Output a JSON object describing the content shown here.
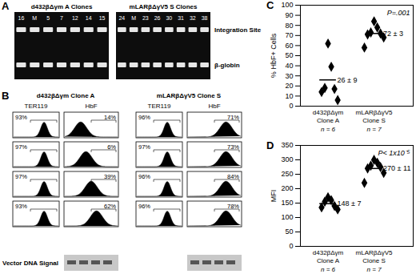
{
  "panel_a": {
    "label": "A",
    "gels": [
      {
        "title": "d432βΔγm A Clones",
        "lanes": [
          "16",
          "M",
          "5",
          "7",
          "12",
          "14",
          "15"
        ]
      },
      {
        "title": "mLARβΔγV5 S Clones",
        "lanes": [
          "24",
          "M",
          "23",
          "26",
          "30",
          "31",
          "32",
          "38"
        ]
      }
    ],
    "row_labels": [
      "Integration Site",
      "β-globin"
    ]
  },
  "panel_b": {
    "label": "B",
    "groups": [
      {
        "title": "d432βΔγm Clone A",
        "columns": [
          "TER119",
          "HbF"
        ],
        "rows": [
          [
            "93%",
            "14%"
          ],
          [
            "97%",
            "6%"
          ],
          [
            "97%",
            "39%"
          ],
          [
            "93%",
            "62%"
          ]
        ]
      },
      {
        "title": "mLARβΔγV5 Clone S",
        "columns": [
          "TER119",
          "HbF"
        ],
        "rows": [
          [
            "96%",
            "71%"
          ],
          [
            "97%",
            "73%"
          ],
          [
            "96%",
            "84%"
          ],
          [
            "96%",
            "78%"
          ]
        ]
      }
    ],
    "footer": "Vector DNA Signal"
  },
  "chart_data": [
    {
      "panel_label": "C",
      "type": "scatter",
      "marker": "diamond",
      "color": "#000000",
      "categories": [
        "d432βΔγm Clone A",
        "mLARβΔγV5 Clone S"
      ],
      "category_notes": [
        "n = 6",
        "n = 7"
      ],
      "values": [
        [
          62,
          39,
          18,
          17,
          14,
          6
        ],
        [
          84,
          78,
          73,
          72,
          71,
          68,
          58
        ]
      ],
      "means": [
        26,
        72
      ],
      "mean_labels": [
        "26 ± 9",
        "72 ± 3"
      ],
      "annotation": "P=.001",
      "ylabel": "% HbF+ Cells",
      "ylim": [
        0,
        100
      ],
      "yticks": [
        0,
        10,
        20,
        30,
        40,
        50,
        60,
        70,
        80,
        90,
        100
      ],
      "grid": false
    },
    {
      "panel_label": "D",
      "type": "scatter",
      "marker": "diamond",
      "color": "#000000",
      "categories": [
        "d432βΔγm Clone A",
        "mLARβΔγV5 Clone S"
      ],
      "category_notes": [
        "n = 6",
        "n = 7"
      ],
      "values": [
        [
          170,
          160,
          155,
          140,
          135,
          128
        ],
        [
          300,
          290,
          280,
          275,
          270,
          255,
          220
        ]
      ],
      "means": [
        148,
        270
      ],
      "mean_labels": [
        "148 ± 7",
        "270 ± 11"
      ],
      "annotation": "P< 1x10⁻⁵",
      "ylabel": "MFI",
      "ylim": [
        0,
        350
      ],
      "yticks": [
        0,
        50,
        100,
        150,
        200,
        250,
        300,
        350
      ],
      "grid": false
    }
  ]
}
